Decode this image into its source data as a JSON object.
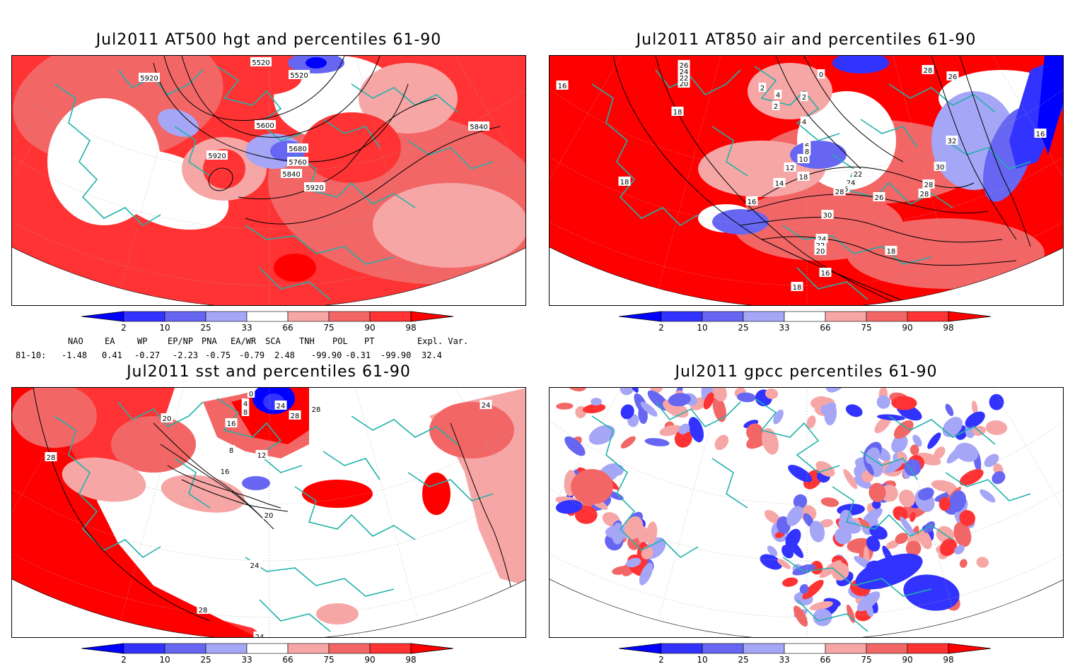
{
  "panels": [
    {
      "id": "at500",
      "title": "Jul2011 AT500 hgt and percentiles 61-90",
      "contour_labels": [
        "5920",
        "5520",
        "5520",
        "5600",
        "5840",
        "5920",
        "5680",
        "5760",
        "5840",
        "5920"
      ]
    },
    {
      "id": "at850",
      "title": "Jul2011 AT850 air and percentiles 61-90",
      "contour_labels": [
        "16",
        "18",
        "20",
        "22",
        "24",
        "26",
        "18",
        "2",
        "4",
        "2",
        "0",
        "2",
        "4",
        "6",
        "8",
        "10",
        "12",
        "14",
        "16",
        "18",
        "22",
        "24",
        "26",
        "28",
        "30",
        "32",
        "30",
        "28",
        "28",
        "26",
        "24",
        "22",
        "20",
        "18",
        "16",
        "18",
        "28",
        "26",
        "16"
      ]
    },
    {
      "id": "sst",
      "title": "Jul2011 sst and percentiles 61-90",
      "contour_labels": [
        "28",
        "20",
        "16",
        "12",
        "8",
        "20",
        "24",
        "28",
        "24",
        "0",
        "4",
        "8",
        "16",
        "24",
        "28",
        "28",
        "24"
      ]
    },
    {
      "id": "gpcc",
      "title": "Jul2011 gpcc percentiles 61-90",
      "contour_labels": []
    }
  ],
  "colorbar": {
    "ticks": [
      "2",
      "10",
      "25",
      "33",
      "66",
      "75",
      "90",
      "98"
    ],
    "colors": {
      "below_2": "#0000ff",
      "c2_10": "#3333ff",
      "c10_25": "#6666f2",
      "c25_33": "#a6a6f7",
      "c33_66": "#ffffff",
      "c66_75": "#f7a6a6",
      "c75_90": "#f26666",
      "c90_98": "#ff3333",
      "above_98": "#ff0000"
    }
  },
  "indices": {
    "headers": [
      "NAO",
      "EA",
      "WP",
      "EP/NP",
      "PNA",
      "EA/WR",
      "SCA",
      "TNH",
      "POL",
      "PT",
      "Expl. Var."
    ],
    "row_label": "81-10:",
    "values": [
      "-1.48",
      "0.41",
      "-0.27",
      "-2.23",
      "-0.75",
      "-0.79",
      "2.48",
      "-99.90",
      "-0.31",
      "-99.90",
      "32.4"
    ]
  },
  "colors": {
    "coast": "#20b2aa",
    "contour": "#000000",
    "grid": "#aaaaaa"
  }
}
